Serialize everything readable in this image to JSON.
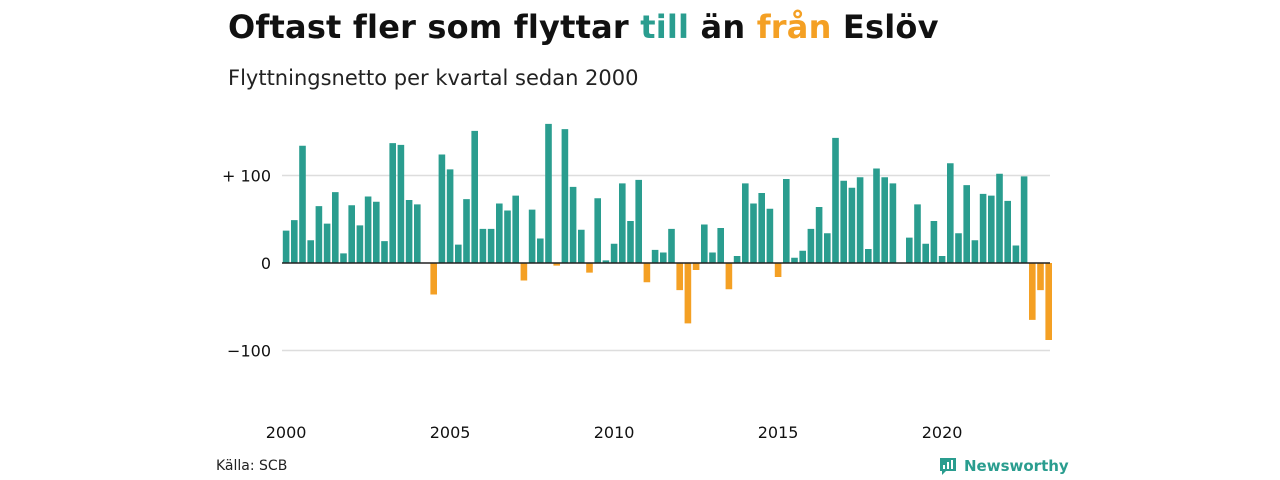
{
  "title": {
    "part1": "Oftast fler som flyttar ",
    "part2": "till",
    "part3": " än ",
    "part4": "från",
    "part5": " Eslöv"
  },
  "subtitle": "Flyttningsnetto per kvartal sedan 2000",
  "source": "Källa: SCB",
  "brand": {
    "name": "Newsworthy",
    "icon": "newsworthy-logo-icon"
  },
  "colors": {
    "positive": "#2a9d8f",
    "negative": "#f4a024",
    "grid": "#dddddd",
    "zero_line": "#222222"
  },
  "chart_data": {
    "type": "bar",
    "title": "Oftast fler som flyttar till än från Eslöv",
    "subtitle": "Flyttningsnetto per kvartal sedan 2000",
    "x_start": "2000 Q1",
    "x_ticks": [
      "2000",
      "2005",
      "2010",
      "2015",
      "2020"
    ],
    "y_ticks": [
      {
        "value": 100,
        "label": "+ 100"
      },
      {
        "value": 0,
        "label": "0"
      },
      {
        "value": -100,
        "label": "−100"
      }
    ],
    "ylim": [
      -140,
      160
    ],
    "grid": true,
    "values": [
      37,
      49,
      134,
      26,
      65,
      45,
      81,
      11,
      66,
      43,
      76,
      70,
      25,
      137,
      135,
      72,
      67,
      0,
      -36,
      124,
      107,
      21,
      73,
      151,
      39,
      39,
      68,
      60,
      77,
      -20,
      61,
      28,
      159,
      -3,
      153,
      87,
      38,
      -11,
      74,
      3,
      22,
      91,
      48,
      95,
      -22,
      15,
      12,
      39,
      -31,
      -69,
      -8,
      44,
      12,
      40,
      -30,
      8,
      91,
      68,
      80,
      62,
      -16,
      96,
      6,
      14,
      39,
      64,
      34,
      143,
      94,
      86,
      98,
      16,
      108,
      98,
      91,
      0,
      29,
      67,
      22,
      48,
      8,
      114,
      34,
      89,
      26,
      79,
      77,
      102,
      71,
      20,
      99,
      -65,
      -31,
      -88
    ]
  }
}
